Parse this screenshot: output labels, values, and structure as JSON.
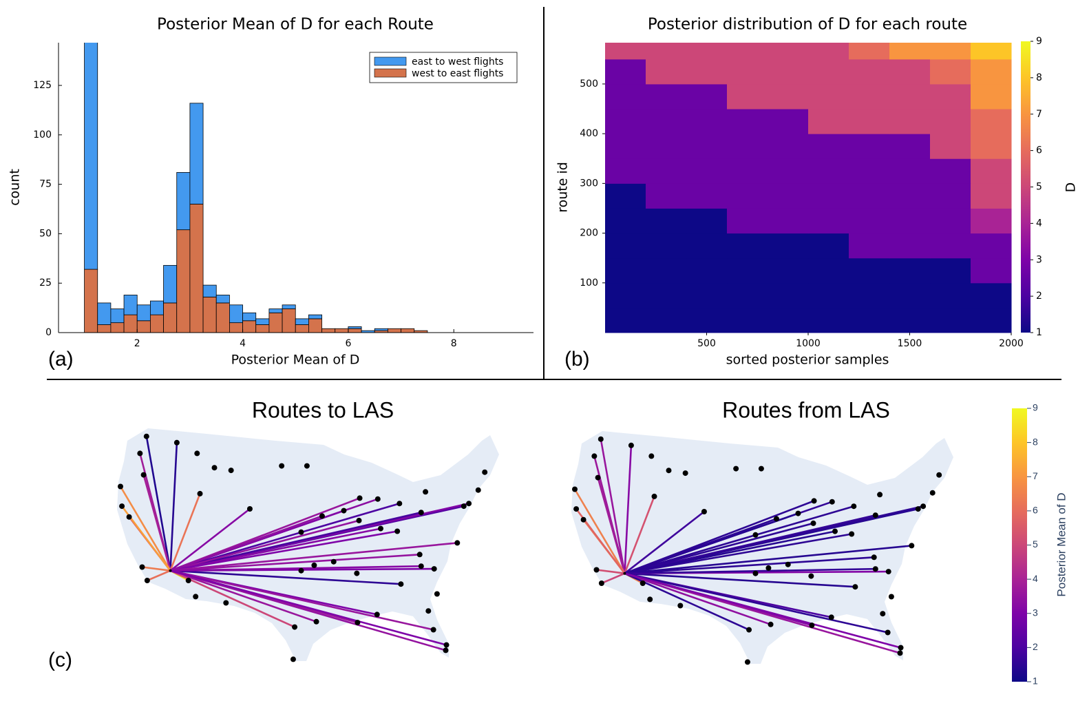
{
  "chart_data": [
    {
      "type": "histogram",
      "title": "Posterior Mean of D for each Route",
      "xlabel": "Posterior Mean of D",
      "ylabel": "count",
      "panel_label": "(a)",
      "bins": [
        1.0,
        1.25,
        1.5,
        1.75,
        2.0,
        2.25,
        2.5,
        2.75,
        3.0,
        3.25,
        3.5,
        3.75,
        4.0,
        4.25,
        4.5,
        4.75,
        5.0,
        5.25,
        5.5,
        5.75,
        6.0,
        6.25,
        6.5,
        6.75,
        7.0,
        7.25,
        7.5
      ],
      "series": [
        {
          "name": "east to west flights",
          "color": "#4399ef",
          "values": [
            118,
            11,
            7,
            10,
            8,
            7,
            19,
            29,
            51,
            6,
            4,
            9,
            4,
            3,
            2,
            2,
            3,
            2,
            0,
            0,
            1,
            1,
            1,
            0,
            0,
            0
          ]
        },
        {
          "name": "west to east flights",
          "color": "#d4734c",
          "values": [
            32,
            4,
            5,
            9,
            6,
            9,
            15,
            52,
            65,
            18,
            15,
            5,
            6,
            4,
            10,
            12,
            4,
            7,
            2,
            2,
            2,
            0,
            1,
            2,
            2,
            1
          ]
        }
      ],
      "stacked": true,
      "xlim": [
        0.51,
        9.51
      ],
      "ylim": [
        0,
        146.6
      ],
      "xticks": [
        2,
        4,
        6,
        8
      ],
      "yticks": [
        0,
        25,
        50,
        75,
        100,
        125
      ],
      "grid": false,
      "legend": "top-right"
    },
    {
      "type": "heatmap",
      "title": "Posterior distribution of D for each route",
      "xlabel": "sorted posterior samples",
      "ylabel": "route id",
      "panel_label": "(b)",
      "x_edges": [
        0,
        200,
        400,
        600,
        800,
        1000,
        1200,
        1400,
        1600,
        1800,
        2000
      ],
      "y_edges": [
        0,
        50,
        100,
        150,
        200,
        250,
        300,
        350,
        400,
        450,
        500,
        550,
        583
      ],
      "z": [
        [
          1,
          1,
          1,
          1,
          1,
          1,
          1,
          1,
          1,
          1
        ],
        [
          1,
          1,
          1,
          1,
          1,
          1,
          1,
          1,
          1,
          1
        ],
        [
          1,
          1,
          1,
          1,
          1,
          1,
          1,
          1,
          1,
          2.6
        ],
        [
          1,
          1,
          1,
          1,
          1,
          1,
          2.6,
          2.6,
          2.6,
          2.6
        ],
        [
          1,
          1,
          1,
          2.6,
          2.6,
          2.6,
          2.6,
          2.6,
          2.6,
          4
        ],
        [
          1,
          2.6,
          2.6,
          2.6,
          2.6,
          2.6,
          2.6,
          2.6,
          2.6,
          5
        ],
        [
          2.6,
          2.6,
          2.6,
          2.6,
          2.6,
          2.6,
          2.6,
          2.6,
          2.6,
          5
        ],
        [
          2.6,
          2.6,
          2.6,
          2.6,
          2.6,
          2.6,
          2.6,
          2.6,
          5,
          6
        ],
        [
          2.6,
          2.6,
          2.6,
          2.6,
          2.6,
          5,
          5,
          5,
          5,
          6
        ],
        [
          2.6,
          2.6,
          2.6,
          5,
          5,
          5,
          5,
          5,
          5,
          7
        ],
        [
          2.6,
          5,
          5,
          5,
          5,
          5,
          5,
          5,
          6,
          7
        ],
        [
          5,
          5,
          5,
          5,
          5,
          5,
          6,
          7,
          7,
          8
        ]
      ],
      "xlim": [
        0,
        2000
      ],
      "ylim": [
        0,
        583
      ],
      "xticks": [
        500,
        1000,
        1500,
        2000
      ],
      "yticks": [
        100,
        200,
        300,
        400,
        500
      ],
      "zlim": [
        1,
        9
      ],
      "zticks": [
        1,
        2,
        3,
        4,
        5,
        6,
        7,
        8,
        9
      ],
      "zlabel": "D",
      "colorscale": [
        "#0d0887",
        "#4c02a1",
        "#7e03a8",
        "#a92395",
        "#cc4778",
        "#e66c5c",
        "#f89540",
        "#fdc527",
        "#f0f921"
      ]
    },
    {
      "type": "map",
      "panel_label": "(c)",
      "hub": {
        "lon": -115.1,
        "lat": 36.1
      },
      "lon": [
        -118.4,
        -114.2,
        -119.3,
        -111.0,
        -118.8,
        -122.0,
        -120.8,
        -121.8,
        -119.0,
        -118.3,
        -112.6,
        -111.6,
        -111.4,
        -109.0,
        -106.7,
        -99.7,
        -96.2,
        -104.1,
        -107.4,
        -98.1,
        -88.9,
        -86.4,
        -83.4,
        -74.5,
        -72.5,
        -71.6,
        -73.8,
        -80.4,
        -89.0,
        -86.0,
        -83.7,
        -91.1,
        -94.1,
        -75.4,
        -80.6,
        -83.2,
        -78.6,
        -80.4,
        -94.9,
        -89.2,
        -97.9,
        -86.5,
        -78.7,
        -77.0,
        -76.9,
        -97.0,
        -95.2,
        -92.5,
        -89.3,
        -97.0,
        -79.8,
        -78.2,
        -79.4
      ],
      "lat": [
        51.1,
        50.4,
        49.2,
        44.7,
        46.8,
        45.5,
        42.1,
        43.3,
        36.5,
        35.0,
        35.0,
        33.2,
        49.2,
        47.6,
        47.3,
        47.8,
        47.8,
        43.0,
        32.5,
        26.2,
        44.2,
        44.1,
        43.6,
        43.3,
        45.1,
        47.1,
        43.6,
        42.6,
        41.7,
        40.8,
        40.5,
        42.8,
        42.2,
        39.2,
        37.9,
        34.6,
        36.3,
        36.6,
        30.4,
        30.3,
        29.8,
        31.2,
        29.5,
        27.2,
        27.8,
        36.1,
        36.7,
        37.1,
        35.8,
        40.4,
        44.9,
        33.5,
        31.6
      ],
      "series": [
        {
          "name": "Routes to LAS",
          "values": [
            1.3,
            1.4,
            3.8,
            6.2,
            3.9,
            6.8,
            5.6,
            7.2,
            6.4,
            6.1,
            8.8,
            null,
            null,
            null,
            null,
            null,
            null,
            3.2,
            null,
            null,
            3.6,
            3.3,
            2.0,
            2.2,
            null,
            null,
            3.1,
            1.9,
            3.5,
            3.2,
            3.0,
            3.1,
            3.4,
            3.6,
            3.5,
            1.5,
            3.0,
            3.2,
            3.6,
            3.7,
            5.0,
            3.0,
            3.6,
            3.5,
            3.0,
            null,
            null,
            null,
            null,
            null,
            null,
            null,
            null
          ]
        },
        {
          "name": "Routes from LAS",
          "values": [
            3.6,
            3.2,
            3.7,
            5.3,
            3.8,
            6.5,
            6.3,
            5.8,
            5.2,
            5.0,
            6.6,
            null,
            null,
            null,
            null,
            null,
            null,
            1.8,
            null,
            null,
            1.5,
            1.6,
            1.5,
            1.4,
            null,
            null,
            1.5,
            1.6,
            1.5,
            1.4,
            1.5,
            1.4,
            1.5,
            1.4,
            1.5,
            1.4,
            3.1,
            1.6,
            3.4,
            3.2,
            1.5,
            2.0,
            1.5,
            3.6,
            3.0,
            null,
            null,
            null,
            null,
            null,
            null,
            null,
            null
          ]
        }
      ],
      "colorbar": {
        "title": "Posterior Mean of D",
        "ylim": [
          1,
          9
        ],
        "yticks": [
          1,
          2,
          3,
          4,
          5,
          6,
          7,
          8,
          9
        ]
      }
    }
  ]
}
